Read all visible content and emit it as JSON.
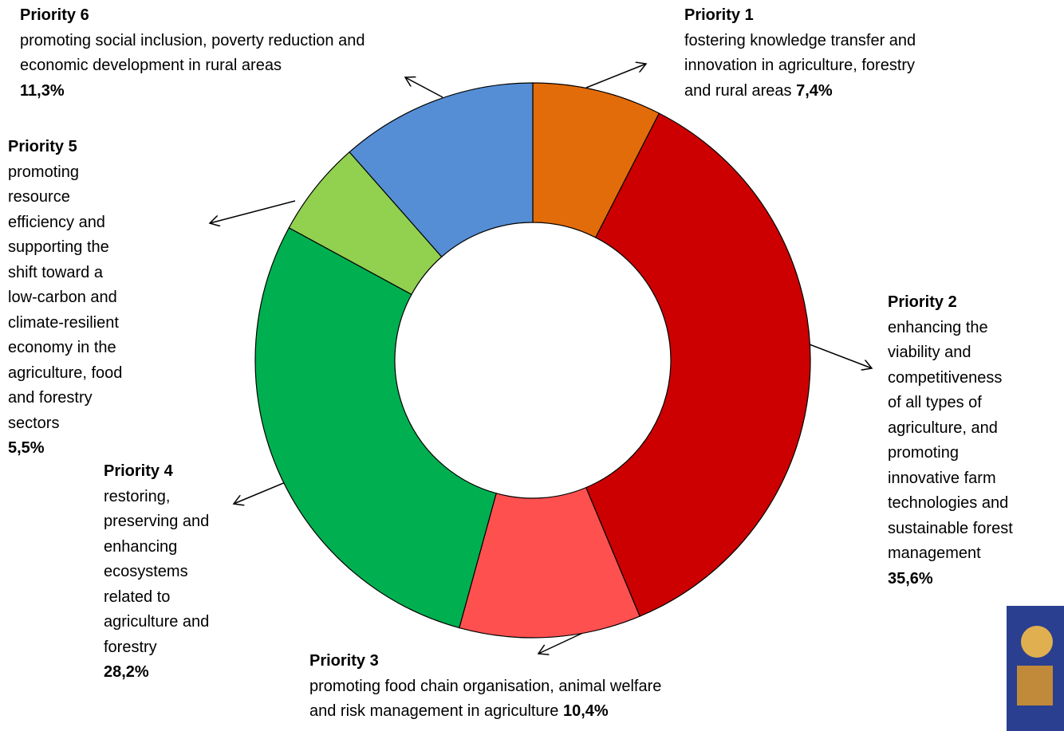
{
  "chart_data": {
    "type": "donut",
    "categories": [
      "Priority 1",
      "Priority 2",
      "Priority 3",
      "Priority 4",
      "Priority 5",
      "Priority 6"
    ],
    "descriptions": [
      [
        "fostering knowledge transfer and",
        "innovation in agriculture, forestry",
        "and rural areas"
      ],
      [
        "enhancing the",
        "viability and",
        "competitiveness",
        "of all types of",
        "agriculture, and",
        "promoting",
        "innovative farm",
        "technologies and",
        "sustainable forest",
        "management"
      ],
      [
        "promoting food chain organisation, animal welfare",
        "and risk management in agriculture"
      ],
      [
        "restoring,",
        "preserving and",
        "enhancing",
        "ecosystems",
        "related to",
        "agriculture and",
        "forestry"
      ],
      [
        "promoting",
        "resource",
        "efficiency and",
        "supporting the",
        "shift toward a",
        "low-carbon and",
        "climate-resilient",
        "economy in the",
        "agriculture, food",
        "and forestry",
        "sectors"
      ],
      [
        "promoting social inclusion, poverty reduction and",
        "economic development in rural areas"
      ]
    ],
    "values": [
      7.4,
      35.6,
      10.4,
      28.2,
      5.5,
      11.3
    ],
    "value_labels": [
      "7,4%",
      "35,6%",
      "10,4%",
      "28,2%",
      "5,5%",
      "11,3%"
    ],
    "colors": [
      "#e36c0a",
      "#cc0000",
      "#ff5050",
      "#00b050",
      "#92d050",
      "#558ed5"
    ]
  }
}
